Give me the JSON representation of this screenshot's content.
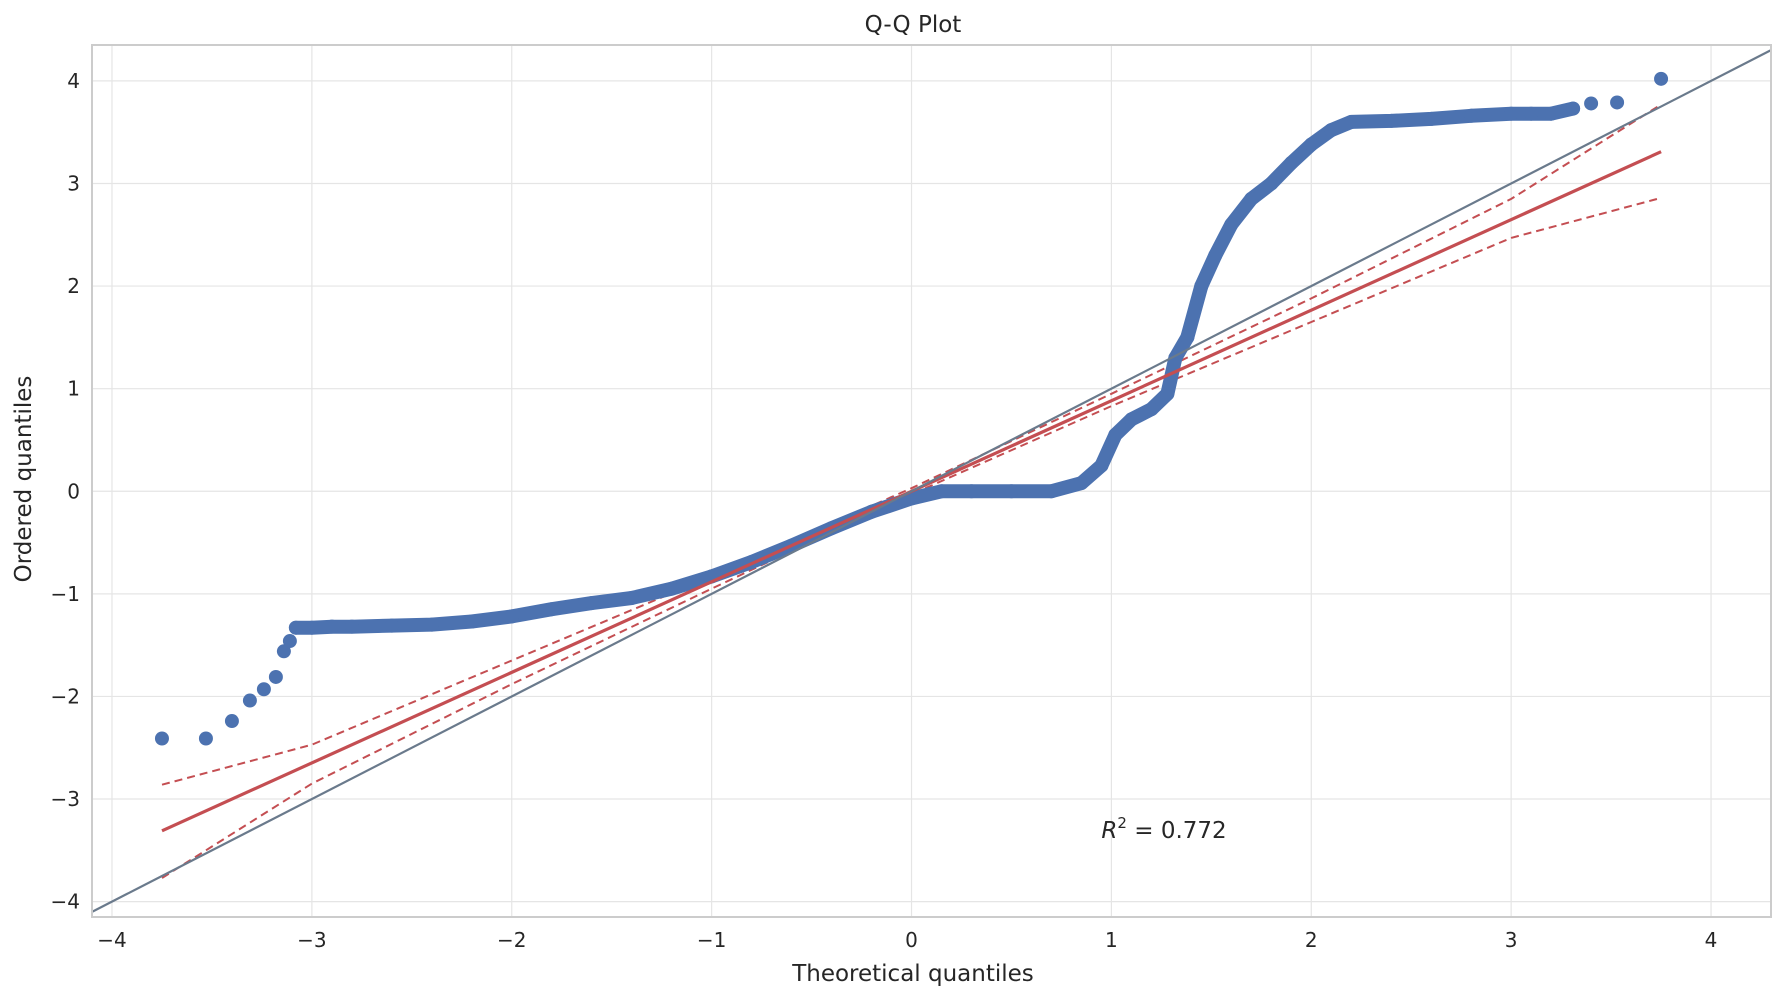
{
  "chart_data": {
    "type": "scatter",
    "title": "Q-Q Plot",
    "xlabel": "Theoretical quantiles",
    "ylabel": "Ordered quantiles",
    "xlim": [
      -4.1,
      4.3
    ],
    "ylim": [
      -4.15,
      4.35
    ],
    "x_ticks": [
      -4,
      -3,
      -2,
      -1,
      0,
      1,
      2,
      3,
      4
    ],
    "y_ticks": [
      -4,
      -3,
      -2,
      -1,
      0,
      1,
      2,
      3,
      4
    ],
    "x_tick_labels": [
      "−4",
      "−3",
      "−2",
      "−1",
      "0",
      "1",
      "2",
      "3",
      "4"
    ],
    "y_tick_labels": [
      "−4",
      "−3",
      "−2",
      "−1",
      "0",
      "1",
      "2",
      "3",
      "4"
    ],
    "grid": true,
    "annotation": {
      "text_main": "R",
      "text_sup": "2",
      "text_rest": " = 0.772",
      "x": 0.95,
      "y": -3.3
    },
    "colors": {
      "points": "#4c72b0",
      "fit_line": "#c44e52",
      "reference_line": "#6a7a8c",
      "grid": "#e5e5e5",
      "spine": "#cccccc"
    },
    "series": [
      {
        "name": "Ordered quantiles",
        "kind": "points",
        "points": [
          [
            -3.75,
            -2.41
          ],
          [
            -3.53,
            -2.41
          ],
          [
            -3.4,
            -2.24
          ],
          [
            -3.31,
            -2.04
          ],
          [
            -3.24,
            -1.93
          ],
          [
            -3.18,
            -1.81
          ],
          [
            -3.14,
            -1.56
          ],
          [
            -3.11,
            -1.46
          ],
          [
            -3.08,
            -1.33
          ],
          [
            -3.0,
            -1.33
          ],
          [
            -2.9,
            -1.32
          ],
          [
            -2.8,
            -1.32
          ],
          [
            -2.6,
            -1.31
          ],
          [
            -2.4,
            -1.3
          ],
          [
            -2.2,
            -1.27
          ],
          [
            -2.0,
            -1.22
          ],
          [
            -1.8,
            -1.15
          ],
          [
            -1.6,
            -1.09
          ],
          [
            -1.4,
            -1.04
          ],
          [
            -1.2,
            -0.95
          ],
          [
            -1.0,
            -0.83
          ],
          [
            -0.8,
            -0.69
          ],
          [
            -0.6,
            -0.53
          ],
          [
            -0.4,
            -0.36
          ],
          [
            -0.2,
            -0.2
          ],
          [
            0.0,
            -0.07
          ],
          [
            0.15,
            0.0
          ],
          [
            0.3,
            0.0
          ],
          [
            0.5,
            0.0
          ],
          [
            0.7,
            0.0
          ],
          [
            0.85,
            0.08
          ],
          [
            0.95,
            0.25
          ],
          [
            1.02,
            0.55
          ],
          [
            1.1,
            0.7
          ],
          [
            1.2,
            0.8
          ],
          [
            1.28,
            0.95
          ],
          [
            1.32,
            1.3
          ],
          [
            1.38,
            1.5
          ],
          [
            1.45,
            2.0
          ],
          [
            1.52,
            2.3
          ],
          [
            1.6,
            2.6
          ],
          [
            1.7,
            2.85
          ],
          [
            1.8,
            3.0
          ],
          [
            1.9,
            3.2
          ],
          [
            2.0,
            3.38
          ],
          [
            2.1,
            3.52
          ],
          [
            2.2,
            3.6
          ],
          [
            2.4,
            3.61
          ],
          [
            2.6,
            3.63
          ],
          [
            2.8,
            3.66
          ],
          [
            3.0,
            3.68
          ],
          [
            3.1,
            3.68
          ],
          [
            3.2,
            3.68
          ],
          [
            3.31,
            3.73
          ],
          [
            3.4,
            3.78
          ],
          [
            3.53,
            3.79
          ],
          [
            3.75,
            4.02
          ]
        ]
      },
      {
        "name": "Fit line",
        "kind": "line",
        "points": [
          [
            -3.75,
            -3.31
          ],
          [
            3.75,
            3.31
          ]
        ]
      },
      {
        "name": "Confidence band upper",
        "kind": "dashed",
        "points": [
          [
            -3.75,
            -2.86
          ],
          [
            -3.0,
            -2.47
          ],
          [
            -2.0,
            -1.65
          ],
          [
            -1.0,
            -0.83
          ],
          [
            0.0,
            0.03
          ],
          [
            1.0,
            0.95
          ],
          [
            2.0,
            1.88
          ],
          [
            3.0,
            2.85
          ],
          [
            3.75,
            3.77
          ]
        ]
      },
      {
        "name": "Confidence band lower",
        "kind": "dashed",
        "points": [
          [
            -3.75,
            -3.77
          ],
          [
            -3.0,
            -2.85
          ],
          [
            -2.0,
            -1.88
          ],
          [
            -1.0,
            -0.95
          ],
          [
            0.0,
            -0.03
          ],
          [
            1.0,
            0.83
          ],
          [
            2.0,
            1.65
          ],
          [
            3.0,
            2.47
          ],
          [
            3.75,
            2.86
          ]
        ]
      },
      {
        "name": "Reference line",
        "kind": "line",
        "points": [
          [
            -4.1,
            -4.1
          ],
          [
            4.3,
            4.3
          ]
        ]
      }
    ]
  }
}
